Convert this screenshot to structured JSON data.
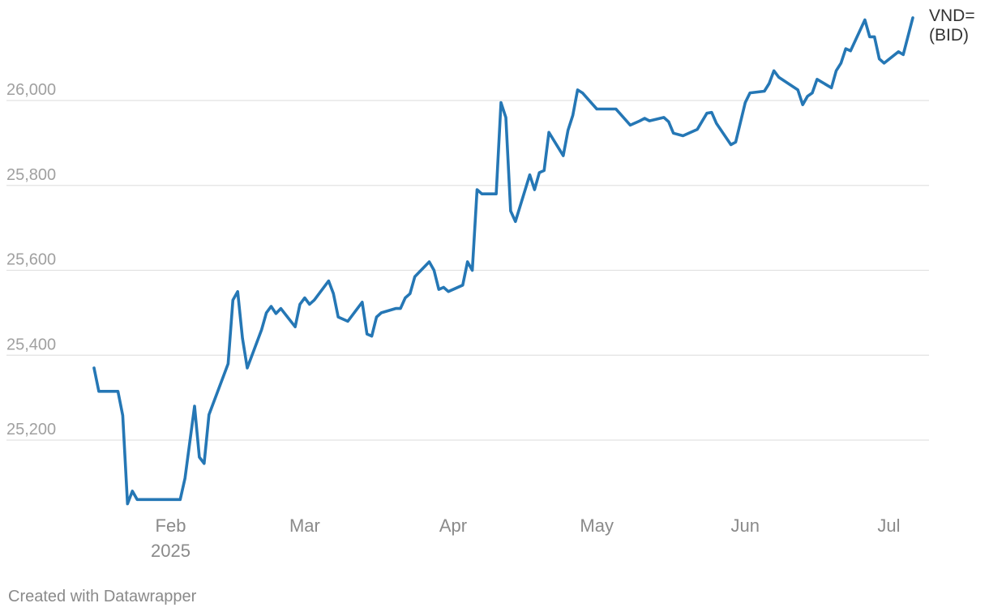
{
  "chart_data": {
    "type": "line",
    "ylim": [
      25050,
      26200
    ],
    "y_ticks": [
      {
        "value": 26000,
        "label": "26,000"
      },
      {
        "value": 25800,
        "label": "25,800"
      },
      {
        "value": 25600,
        "label": "25,600"
      },
      {
        "value": 25400,
        "label": "25,400"
      },
      {
        "value": 25200,
        "label": "25,200"
      }
    ],
    "x_range": [
      "2025-01-13",
      "2025-07-06"
    ],
    "x_ticks": [
      {
        "date": "2025-02-01",
        "label": "Feb",
        "sublabel": "2025"
      },
      {
        "date": "2025-03-01",
        "label": "Mar"
      },
      {
        "date": "2025-04-01",
        "label": "Apr"
      },
      {
        "date": "2025-05-01",
        "label": "May"
      },
      {
        "date": "2025-06-01",
        "label": "Jun"
      },
      {
        "date": "2025-07-01",
        "label": "Jul"
      }
    ],
    "series": [
      {
        "name_lines": [
          "VND=",
          "(BID)"
        ],
        "color": "#2577b5",
        "points": [
          [
            "2025-01-16",
            25370
          ],
          [
            "2025-01-17",
            25315
          ],
          [
            "2025-01-20",
            25315
          ],
          [
            "2025-01-21",
            25315
          ],
          [
            "2025-01-22",
            25258
          ],
          [
            "2025-01-23",
            25050
          ],
          [
            "2025-01-24",
            25080
          ],
          [
            "2025-01-25",
            25060
          ],
          [
            "2025-02-03",
            25060
          ],
          [
            "2025-02-04",
            25110
          ],
          [
            "2025-02-06",
            25280
          ],
          [
            "2025-02-07",
            25160
          ],
          [
            "2025-02-08",
            25145
          ],
          [
            "2025-02-09",
            25260
          ],
          [
            "2025-02-13",
            25380
          ],
          [
            "2025-02-14",
            25530
          ],
          [
            "2025-02-15",
            25550
          ],
          [
            "2025-02-16",
            25440
          ],
          [
            "2025-02-17",
            25370
          ],
          [
            "2025-02-20",
            25460
          ],
          [
            "2025-02-21",
            25500
          ],
          [
            "2025-02-22",
            25515
          ],
          [
            "2025-02-23",
            25498
          ],
          [
            "2025-02-24",
            25510
          ],
          [
            "2025-02-27",
            25467
          ],
          [
            "2025-02-28",
            25520
          ],
          [
            "2025-03-01",
            25535
          ],
          [
            "2025-03-02",
            25520
          ],
          [
            "2025-03-03",
            25530
          ],
          [
            "2025-03-06",
            25575
          ],
          [
            "2025-03-07",
            25545
          ],
          [
            "2025-03-08",
            25490
          ],
          [
            "2025-03-10",
            25480
          ],
          [
            "2025-03-13",
            25525
          ],
          [
            "2025-03-14",
            25450
          ],
          [
            "2025-03-15",
            25445
          ],
          [
            "2025-03-16",
            25490
          ],
          [
            "2025-03-17",
            25500
          ],
          [
            "2025-03-20",
            25510
          ],
          [
            "2025-03-21",
            25510
          ],
          [
            "2025-03-22",
            25535
          ],
          [
            "2025-03-23",
            25545
          ],
          [
            "2025-03-24",
            25585
          ],
          [
            "2025-03-27",
            25620
          ],
          [
            "2025-03-28",
            25600
          ],
          [
            "2025-03-29",
            25555
          ],
          [
            "2025-03-30",
            25560
          ],
          [
            "2025-03-31",
            25550
          ],
          [
            "2025-04-03",
            25565
          ],
          [
            "2025-04-04",
            25620
          ],
          [
            "2025-04-05",
            25600
          ],
          [
            "2025-04-06",
            25790
          ],
          [
            "2025-04-07",
            25780
          ],
          [
            "2025-04-10",
            25780
          ],
          [
            "2025-04-11",
            25995
          ],
          [
            "2025-04-12",
            25960
          ],
          [
            "2025-04-13",
            25740
          ],
          [
            "2025-04-14",
            25715
          ],
          [
            "2025-04-17",
            25825
          ],
          [
            "2025-04-18",
            25790
          ],
          [
            "2025-04-19",
            25830
          ],
          [
            "2025-04-20",
            25835
          ],
          [
            "2025-04-21",
            25925
          ],
          [
            "2025-04-24",
            25870
          ],
          [
            "2025-04-25",
            25930
          ],
          [
            "2025-04-26",
            25965
          ],
          [
            "2025-04-27",
            26025
          ],
          [
            "2025-04-28",
            26018
          ],
          [
            "2025-05-01",
            25980
          ],
          [
            "2025-05-05",
            25980
          ],
          [
            "2025-05-08",
            25942
          ],
          [
            "2025-05-10",
            25952
          ],
          [
            "2025-05-11",
            25958
          ],
          [
            "2025-05-12",
            25952
          ],
          [
            "2025-05-15",
            25960
          ],
          [
            "2025-05-16",
            25950
          ],
          [
            "2025-05-17",
            25923
          ],
          [
            "2025-05-19",
            25917
          ],
          [
            "2025-05-22",
            25932
          ],
          [
            "2025-05-24",
            25970
          ],
          [
            "2025-05-25",
            25972
          ],
          [
            "2025-05-26",
            25946
          ],
          [
            "2025-05-29",
            25896
          ],
          [
            "2025-05-30",
            25902
          ],
          [
            "2025-06-01",
            25995
          ],
          [
            "2025-06-02",
            26018
          ],
          [
            "2025-06-05",
            26022
          ],
          [
            "2025-06-06",
            26040
          ],
          [
            "2025-06-07",
            26070
          ],
          [
            "2025-06-08",
            26055
          ],
          [
            "2025-06-12",
            26025
          ],
          [
            "2025-06-13",
            25990
          ],
          [
            "2025-06-14",
            26010
          ],
          [
            "2025-06-15",
            26018
          ],
          [
            "2025-06-16",
            26050
          ],
          [
            "2025-06-19",
            26030
          ],
          [
            "2025-06-20",
            26070
          ],
          [
            "2025-06-21",
            26088
          ],
          [
            "2025-06-22",
            26122
          ],
          [
            "2025-06-23",
            26117
          ],
          [
            "2025-06-26",
            26190
          ],
          [
            "2025-06-27",
            26150
          ],
          [
            "2025-06-28",
            26150
          ],
          [
            "2025-06-29",
            26098
          ],
          [
            "2025-06-30",
            26088
          ],
          [
            "2025-07-03",
            26115
          ],
          [
            "2025-07-04",
            26108
          ],
          [
            "2025-07-06",
            26195
          ]
        ]
      }
    ]
  },
  "footer": {
    "credit": "Created with Datawrapper"
  }
}
